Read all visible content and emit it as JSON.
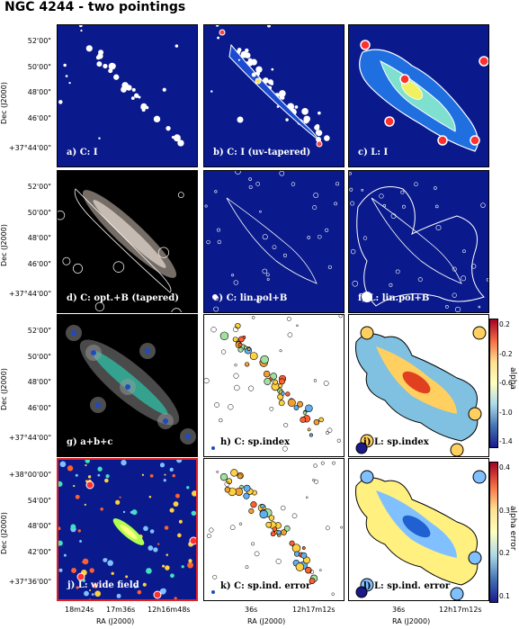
{
  "figure": {
    "title": "NGC 4244 - two pointings",
    "y_axis_label": "Dec (J2000)",
    "x_axis_label": "RA (J2000)",
    "rows": [
      {
        "yticks": [
          "52'00\"",
          "50'00\"",
          "48'00\"",
          "46'00\"",
          "+37°44'00\""
        ]
      },
      {
        "yticks": [
          "52'00\"",
          "50'00\"",
          "48'00\"",
          "46'00\"",
          "+37°44'00\""
        ]
      },
      {
        "yticks": [
          "52'00\"",
          "50'00\"",
          "48'00\"",
          "46'00\"",
          "+37°44'00\""
        ]
      },
      {
        "yticks": [
          "+38°00'00\"",
          "54'00\"",
          "48'00\"",
          "42'00\"",
          "+37°36'00\""
        ]
      }
    ],
    "xticks": {
      "col1": [
        "18m24s",
        "17m36s",
        "12h16m48s"
      ],
      "col2": [
        "36s",
        "12h17m12s"
      ],
      "col3": [
        "36s",
        "12h17m12s"
      ]
    },
    "panels": [
      {
        "id": "a",
        "label": "a) C: I"
      },
      {
        "id": "b",
        "label": "b) C: I (uv-tapered)"
      },
      {
        "id": "c",
        "label": "c) L: I"
      },
      {
        "id": "d",
        "label": "d) C: opt.+B (tapered)"
      },
      {
        "id": "e",
        "label": "e) C: lin.pol+B"
      },
      {
        "id": "f",
        "label": "f) L: lin.pol+B"
      },
      {
        "id": "g",
        "label": "g) a+b+c"
      },
      {
        "id": "h",
        "label": "h) C: sp.index"
      },
      {
        "id": "i",
        "label": "i) L: sp.index"
      },
      {
        "id": "j",
        "label": "j) L: wide field"
      },
      {
        "id": "k",
        "label": "k) C: sp.ind. error"
      },
      {
        "id": "l",
        "label": "l) L: sp.ind. error"
      }
    ],
    "colorbars": [
      {
        "title": "alpha",
        "ticks": [
          "0.2",
          "-0.2",
          "-0.6",
          "-1.0",
          "-1.4"
        ]
      },
      {
        "title": "alpha error",
        "ticks": [
          "0.4",
          "0.3",
          "0.2",
          "0.1"
        ]
      }
    ],
    "colors": {
      "background_blue": "#0a1a8c",
      "accent_red_frame": "#e02020"
    }
  }
}
